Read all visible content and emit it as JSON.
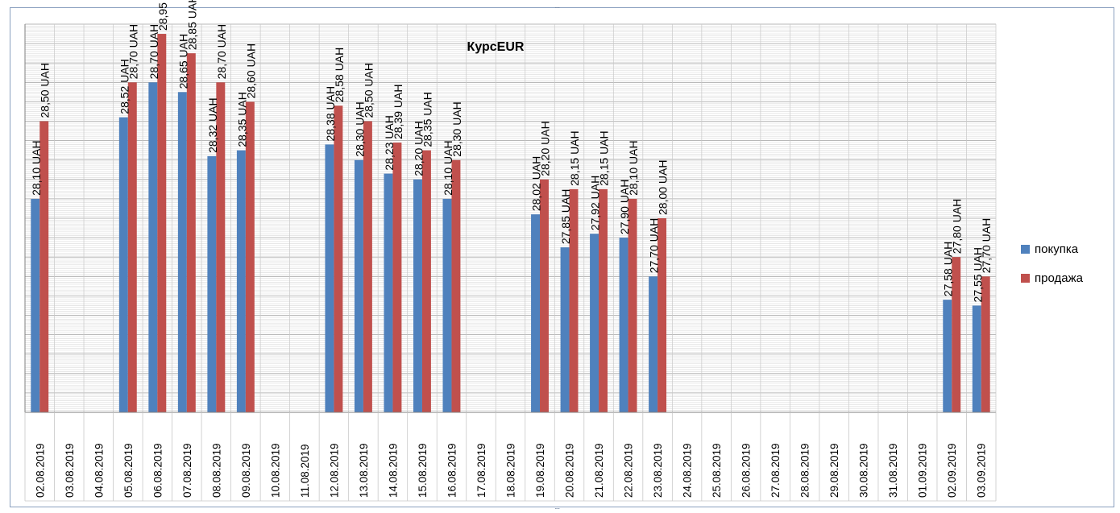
{
  "chart_data": {
    "type": "bar",
    "title": "КурсEUR",
    "categories": [
      "02.08.2019",
      "03.08.2019",
      "04.08.2019",
      "05.08.2019",
      "06.08.2019",
      "07.08.2019",
      "08.08.2019",
      "09.08.2019",
      "10.08.2019",
      "11.08.2019",
      "12.08.2019",
      "13.08.2019",
      "14.08.2019",
      "15.08.2019",
      "16.08.2019",
      "17.08.2019",
      "18.08.2019",
      "19.08.2019",
      "20.08.2019",
      "21.08.2019",
      "22.08.2019",
      "23.08.2019",
      "24.08.2019",
      "25.08.2019",
      "26.08.2019",
      "27.08.2019",
      "28.08.2019",
      "29.08.2019",
      "30.08.2019",
      "31.08.2019",
      "01.09.2019",
      "02.09.2019",
      "03.09.2019"
    ],
    "series": [
      {
        "name": "покупка",
        "color": "#4f81bd",
        "values": [
          28.1,
          null,
          null,
          28.52,
          28.7,
          28.65,
          28.32,
          28.35,
          null,
          null,
          28.38,
          28.3,
          28.23,
          28.2,
          28.1,
          null,
          null,
          28.02,
          27.85,
          27.92,
          27.9,
          27.7,
          null,
          null,
          null,
          null,
          null,
          null,
          null,
          null,
          null,
          27.58,
          27.55
        ],
        "labels": [
          "28,10 UAH",
          "",
          "",
          "28,52 UAH",
          "28,70 UAH",
          "28,65 UAH",
          "28,32 UAH",
          "28,35 UAH",
          "",
          "",
          "28,38 UAH",
          "28,30 UAH",
          "28,23 UAH",
          "28,20 UAH",
          "28,10 UAH",
          "",
          "",
          "28,02 UAH",
          "27,85 UAH",
          "27,92 UAH",
          "27,90 UAH",
          "27,70 UAH",
          "",
          "",
          "",
          "",
          "",
          "",
          "",
          "",
          "",
          "27,58 UAH",
          "27,55 UAH"
        ]
      },
      {
        "name": "продажа",
        "color": "#c0504d",
        "values": [
          28.5,
          null,
          null,
          28.7,
          28.95,
          28.85,
          28.7,
          28.6,
          null,
          null,
          28.58,
          28.5,
          28.39,
          28.35,
          28.3,
          null,
          null,
          28.2,
          28.15,
          28.15,
          28.1,
          28.0,
          null,
          null,
          null,
          null,
          null,
          null,
          null,
          null,
          null,
          27.8,
          27.7
        ],
        "labels": [
          "28,50 UAH",
          "",
          "",
          "28,70 UAH",
          "28,95 UAH",
          "28,85 UAH",
          "28,70 UAH",
          "28,60 UAH",
          "",
          "",
          "28,58 UAH",
          "28,50 UAH",
          "28,39 UAH",
          "28,35 UAH",
          "28,30 UAH",
          "",
          "",
          "28,20 UAH",
          "28,15 UAH",
          "28,15 UAH",
          "28,10 UAH",
          "28,00 UAH",
          "",
          "",
          "",
          "",
          "",
          "",
          "",
          "",
          "",
          "27,80 UAH",
          "27,70 UAH"
        ]
      }
    ],
    "ylim": [
      27.0,
      29.0
    ],
    "grid": true,
    "legend_position": "right"
  }
}
